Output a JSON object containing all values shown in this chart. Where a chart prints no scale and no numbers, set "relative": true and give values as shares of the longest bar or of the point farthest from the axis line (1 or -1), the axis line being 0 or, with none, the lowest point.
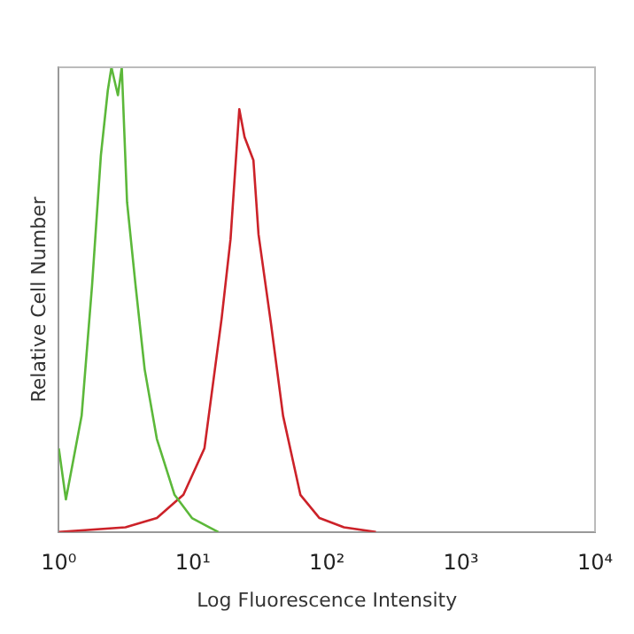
{
  "chart_data": {
    "type": "line",
    "relative": true,
    "xlabel": "Log Fluorescence Intensity",
    "ylabel": "Relative Cell Number",
    "log": "x",
    "xlim": [
      1,
      10000
    ],
    "xticks": [
      {
        "value": 1,
        "label": "10⁰"
      },
      {
        "value": 10,
        "label": "10¹"
      },
      {
        "value": 100,
        "label": "10²"
      },
      {
        "value": 1000,
        "label": "10³"
      },
      {
        "value": 10000,
        "label": "10⁴"
      }
    ],
    "grid": false,
    "legend": false,
    "marker": "none",
    "line_style": "solid",
    "series": [
      {
        "color": "#5cb83a",
        "x": [
          1,
          1.13,
          1.48,
          1.77,
          2.06,
          2.32,
          2.47,
          2.76,
          2.95,
          3.23,
          3.74,
          4.37,
          5.39,
          7.3,
          9.85,
          13.3,
          15.5
        ],
        "values": [
          0.18,
          0.07,
          0.25,
          0.53,
          0.81,
          0.95,
          1,
          0.94,
          1,
          0.71,
          0.53,
          0.35,
          0.2,
          0.08,
          0.03,
          0.01,
          0
        ]
      },
      {
        "color": "#cc2229",
        "x": [
          1,
          3.14,
          5.39,
          8.5,
          12.2,
          16.4,
          19.1,
          22.2,
          24.3,
          28.3,
          30.9,
          38.2,
          47.1,
          63.4,
          88,
          134,
          232
        ],
        "values": [
          0,
          0.01,
          0.03,
          0.08,
          0.18,
          0.46,
          0.63,
          0.91,
          0.85,
          0.8,
          0.64,
          0.45,
          0.25,
          0.08,
          0.03,
          0.01,
          0
        ]
      }
    ]
  }
}
